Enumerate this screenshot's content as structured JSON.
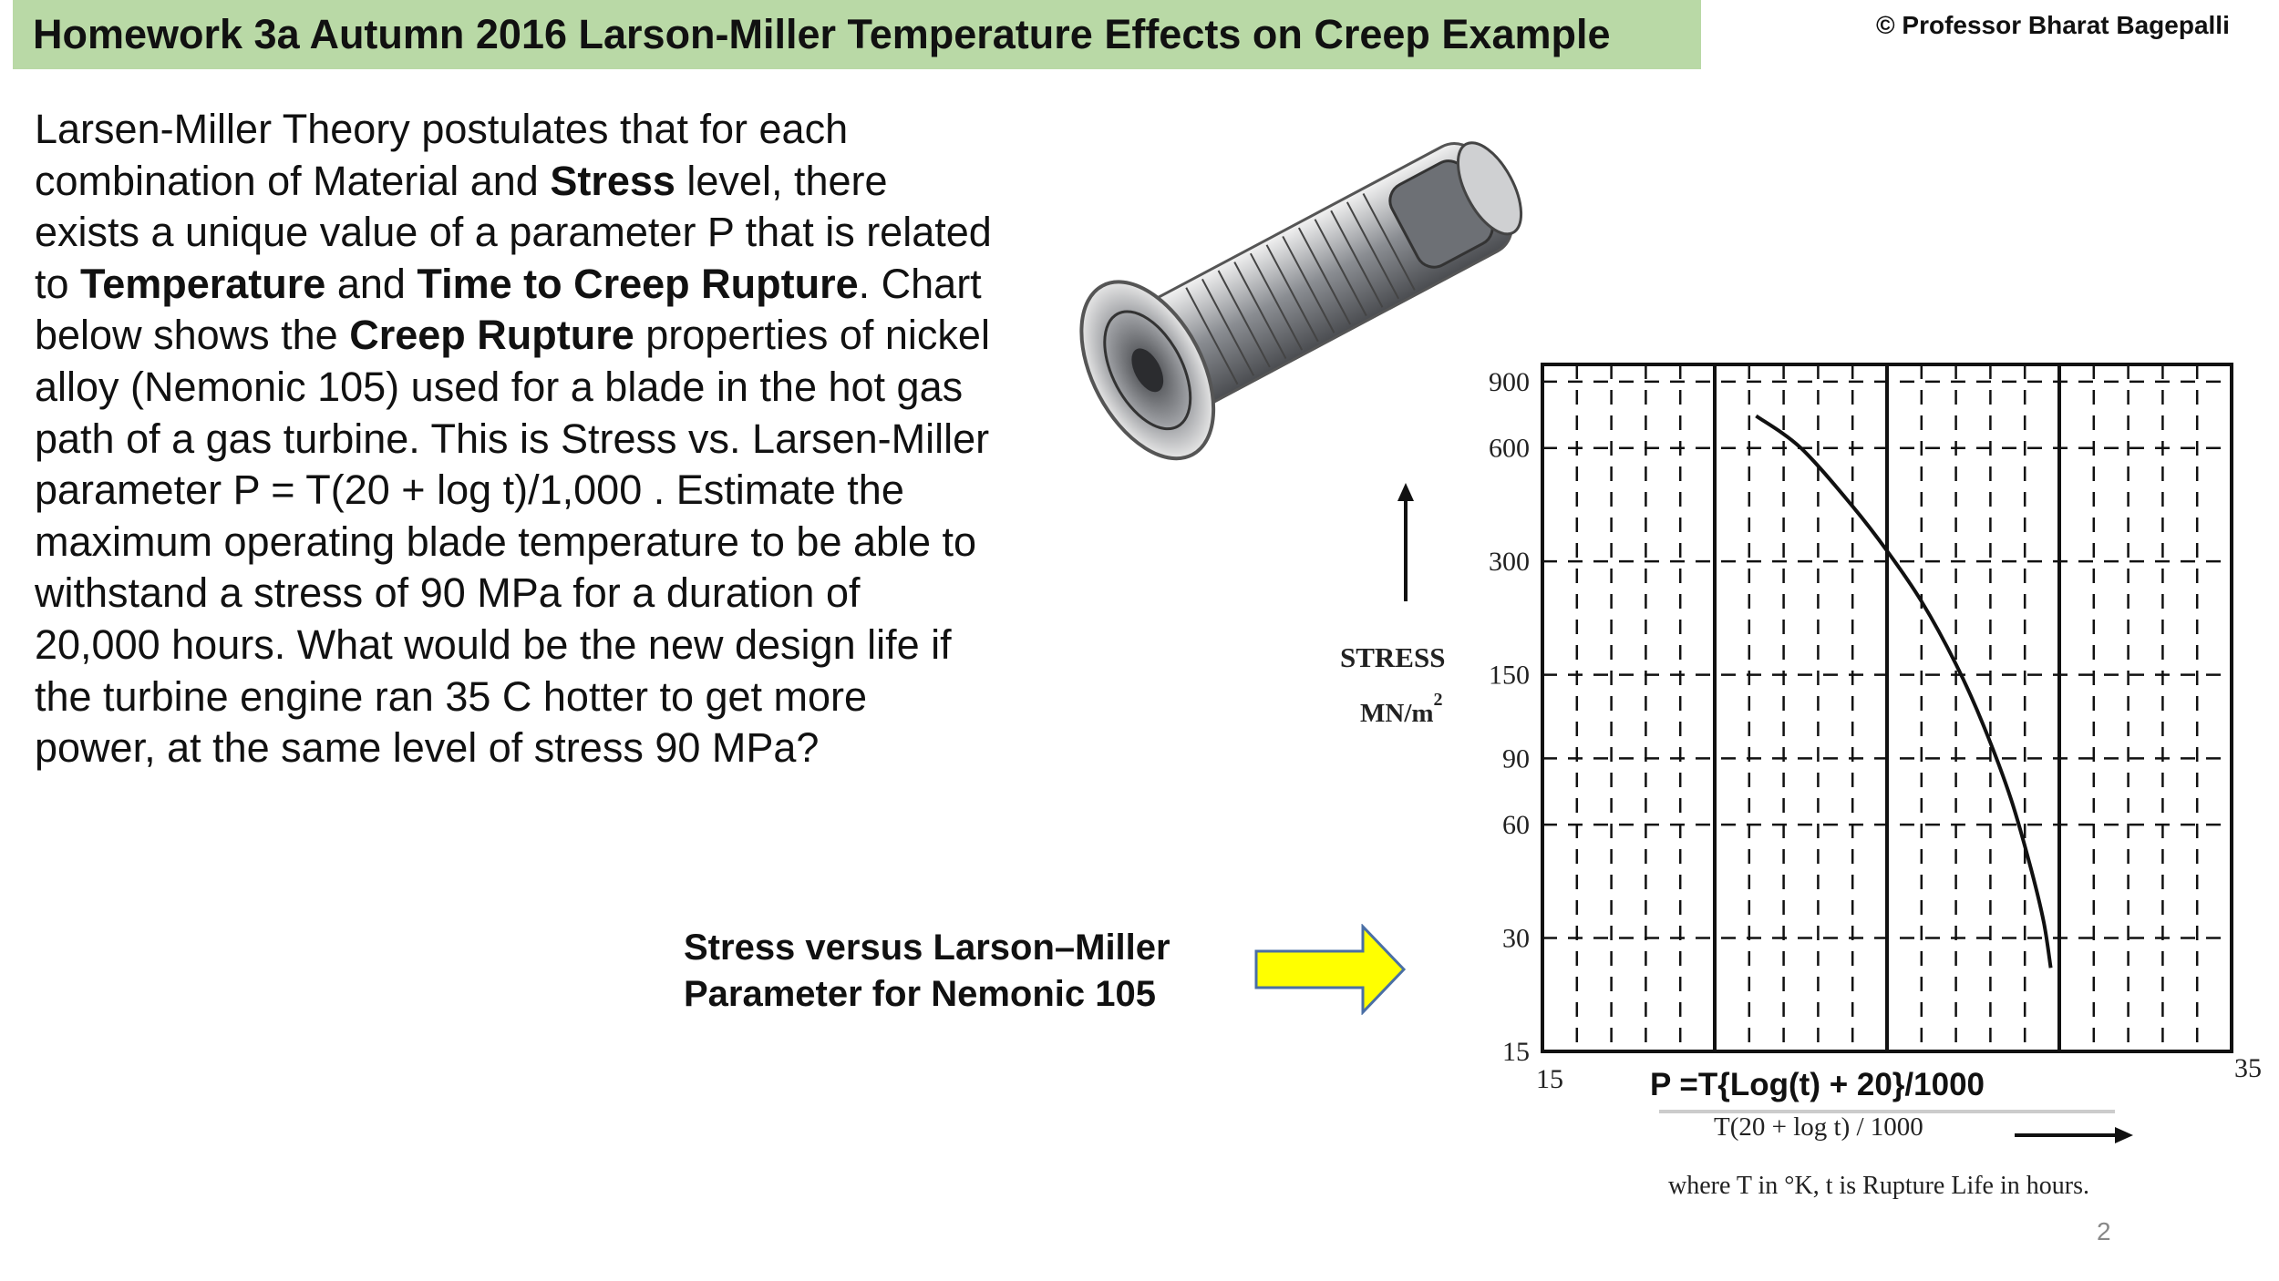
{
  "header": {
    "title": "Homework 3a Autumn 2016 Larson-Miller Temperature Effects on Creep Example",
    "copyright": "© Professor Bharat Bagepalli"
  },
  "body": {
    "lines": [
      [
        {
          "t": "Larsen-Miller Theory postulates that for each",
          "b": false
        }
      ],
      [
        {
          "t": "combination of Material and ",
          "b": false
        },
        {
          "t": "Stress",
          "b": true
        },
        {
          "t": " level, there",
          "b": false
        }
      ],
      [
        {
          "t": "exists a unique value of a parameter P that is related",
          "b": false
        }
      ],
      [
        {
          "t": "to ",
          "b": false
        },
        {
          "t": "Temperature",
          "b": true
        },
        {
          "t": " and ",
          "b": false
        },
        {
          "t": "Time to Creep Rupture",
          "b": true
        },
        {
          "t": ". Chart",
          "b": false
        }
      ],
      [
        {
          "t": "below shows the ",
          "b": false
        },
        {
          "t": "Creep Rupture",
          "b": true
        },
        {
          "t": " properties of nickel",
          "b": false
        }
      ],
      [
        {
          "t": "alloy (Nemonic 105) used for a blade in the hot gas",
          "b": false
        }
      ],
      [
        {
          "t": "path of a gas turbine. This is Stress vs. Larsen-Miller",
          "b": false
        }
      ],
      [
        {
          "t": "parameter P  = T(20 + log t)/1,000 . Estimate the",
          "b": false
        }
      ],
      [
        {
          "t": "maximum operating blade temperature to be able to",
          "b": false
        }
      ],
      [
        {
          "t": "withstand a stress of 90 MPa for a duration of",
          "b": false
        }
      ],
      [
        {
          "t": "20,000 hours. What would be the new design life if",
          "b": false
        }
      ],
      [
        {
          "t": "the turbine engine ran 35 C hotter to get more",
          "b": false
        }
      ],
      [
        {
          "t": "power, at the same level of stress 90 MPa?",
          "b": false
        }
      ]
    ]
  },
  "caption": {
    "line1": "Stress versus Larson–Miller",
    "line2": "Parameter for Nemonic 105"
  },
  "colors": {
    "title_bg": "#b9d9a6",
    "arrow_fill": "#ffff00",
    "arrow_stroke": "#4a6fa5"
  },
  "icons": {
    "turbine": "gas-turbine-cutaway-illustration",
    "arrow": "right-arrow-icon",
    "stress_arrow": "up-arrow-icon",
    "p_arrow": "right-arrow-icon"
  },
  "chart_data": {
    "type": "line",
    "ylabel": "STRESS",
    "ylabel_unit": "MN/m",
    "ylabel_unit_sup": "2",
    "yscale": "log",
    "y_ticks": [
      900,
      600,
      300,
      150,
      90,
      60,
      30,
      15
    ],
    "ylim": [
      15,
      1000
    ],
    "xlim": [
      15,
      35
    ],
    "x_tick_labels": [
      "15",
      "35"
    ],
    "x_formula": "P =T{Log(t) + 20}/1000",
    "xlabel": "T(20 + log t) / 1000",
    "note": "where T in °K, t is Rupture Life in hours.",
    "grid": true,
    "series": [
      {
        "x": [
          21.2,
          22.5,
          24.0,
          25.0,
          26.0,
          27.0,
          27.8,
          28.6,
          29.2,
          29.55,
          29.75
        ],
        "y": [
          730,
          600,
          420,
          320,
          235,
          160,
          110,
          70,
          45,
          33,
          25
        ]
      }
    ]
  },
  "page_number": "2"
}
